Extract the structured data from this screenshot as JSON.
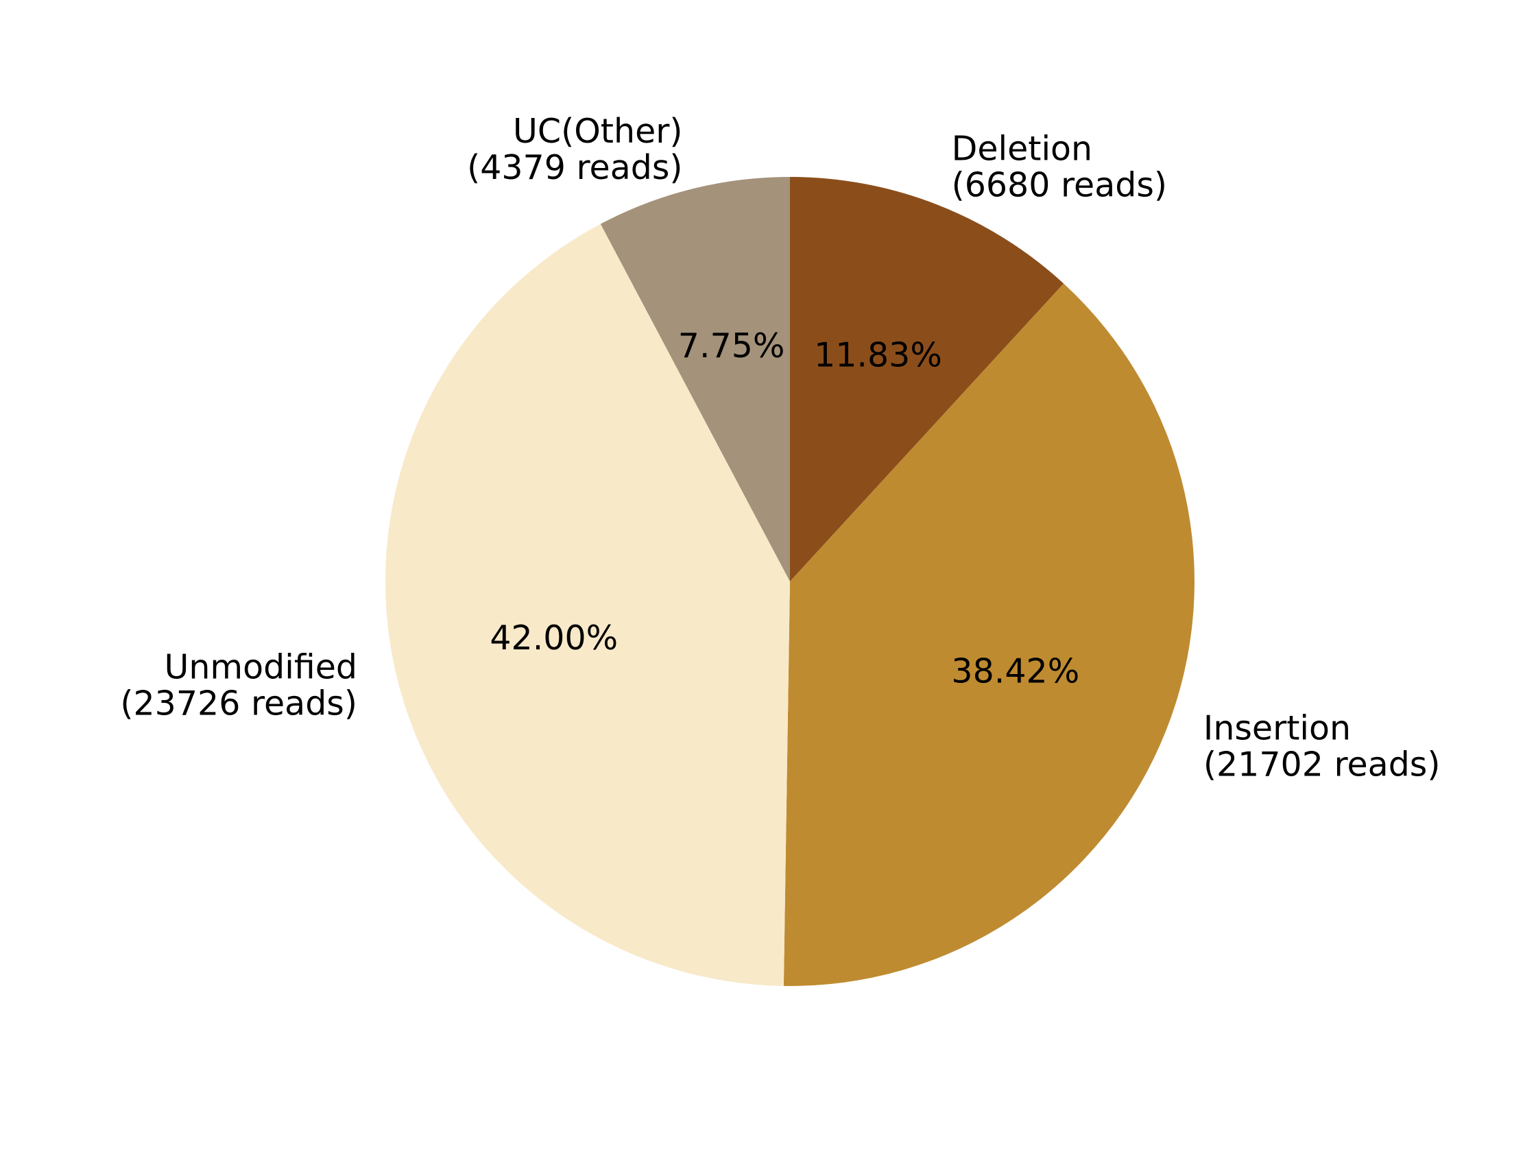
{
  "chart_data": {
    "type": "pie",
    "title": "",
    "start_angle_deg": 90,
    "direction": "clockwise",
    "slices": [
      {
        "name": "Deletion",
        "label": "Deletion",
        "reads_text": "(6680 reads)",
        "value": 6680,
        "percent_text": "11.83%",
        "color": "#8B4E1B"
      },
      {
        "name": "Insertion",
        "label": "Insertion",
        "reads_text": "(21702 reads)",
        "value": 21702,
        "percent_text": "38.42%",
        "color": "#BF8B31"
      },
      {
        "name": "Unmodified",
        "label": "Unmodified",
        "reads_text": "(23726 reads)",
        "value": 23726,
        "percent_text": "42.00%",
        "color": "#F8E9C9"
      },
      {
        "name": "UC(Other)",
        "label": "UC(Other)",
        "reads_text": "(4379 reads)",
        "value": 4379,
        "percent_text": "7.75%",
        "color": "#A4927A"
      }
    ]
  }
}
